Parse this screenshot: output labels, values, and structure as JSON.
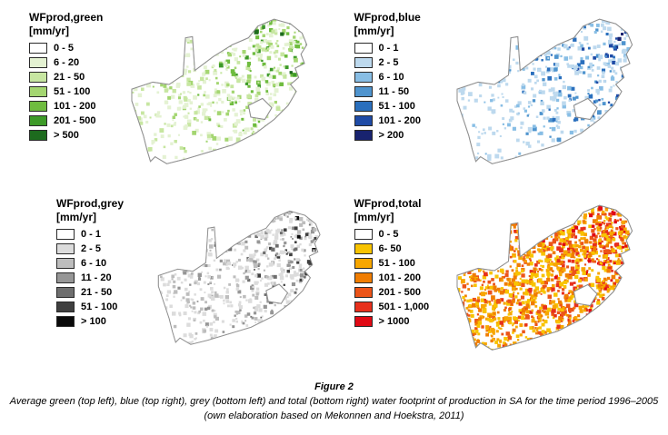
{
  "figure": {
    "number_label": "Figure 2",
    "caption_line1": "Average green (top left), blue (top right), grey (bottom left) and total (bottom right) water footprint of production in SA for the time period 1996–2005",
    "caption_line2": "(own elaboration based on Mekonnen and Hoekstra, 2011)"
  },
  "panels": [
    {
      "id": "green",
      "title": "WFprod,green",
      "units": "[mm/yr]",
      "legend": [
        {
          "label": "0 - 5",
          "color": "#ffffff"
        },
        {
          "label": "6 - 20",
          "color": "#e4f2d2"
        },
        {
          "label": "21 - 50",
          "color": "#c7e6a1"
        },
        {
          "label": "51 - 100",
          "color": "#a4d671"
        },
        {
          "label": "101 - 200",
          "color": "#6fbc3f"
        },
        {
          "label": "201 - 500",
          "color": "#3d9a28"
        },
        {
          "label": "> 500",
          "color": "#1d6b1e"
        }
      ]
    },
    {
      "id": "blue",
      "title": "WFprod,blue",
      "units": "[mm/yr]",
      "legend": [
        {
          "label": "0 - 1",
          "color": "#ffffff"
        },
        {
          "label": "2 - 5",
          "color": "#bdd9ee"
        },
        {
          "label": "6 - 10",
          "color": "#88bee5"
        },
        {
          "label": "11 - 50",
          "color": "#4f94ce"
        },
        {
          "label": "51 - 100",
          "color": "#2a6fbd"
        },
        {
          "label": "101 - 200",
          "color": "#1f4ba6"
        },
        {
          "label": "> 200",
          "color": "#18236f"
        }
      ]
    },
    {
      "id": "grey",
      "title": "WFprod,grey",
      "units": "[mm/yr]",
      "legend": [
        {
          "label": "0 - 1",
          "color": "#ffffff"
        },
        {
          "label": "2 - 5",
          "color": "#dcdcdc"
        },
        {
          "label": "6 - 10",
          "color": "#bdbdbd"
        },
        {
          "label": "11 - 20",
          "color": "#969696"
        },
        {
          "label": "21 - 50",
          "color": "#6e6e6e"
        },
        {
          "label": "51 - 100",
          "color": "#3f3f3f"
        },
        {
          "label": "> 100",
          "color": "#0a0a0a"
        }
      ]
    },
    {
      "id": "total",
      "title": "WFprod,total",
      "units": "[mm/yr]",
      "legend": [
        {
          "label": "0 - 5",
          "color": "#ffffff"
        },
        {
          "label": "6- 50",
          "color": "#f8c301"
        },
        {
          "label": "51 - 100",
          "color": "#f7a600"
        },
        {
          "label": "101 - 200",
          "color": "#f07d02"
        },
        {
          "label": "201 - 500",
          "color": "#ec5418"
        },
        {
          "label": "501 - 1,000",
          "color": "#e7301c"
        },
        {
          "label": "> 1000",
          "color": "#e00914"
        }
      ]
    }
  ]
}
